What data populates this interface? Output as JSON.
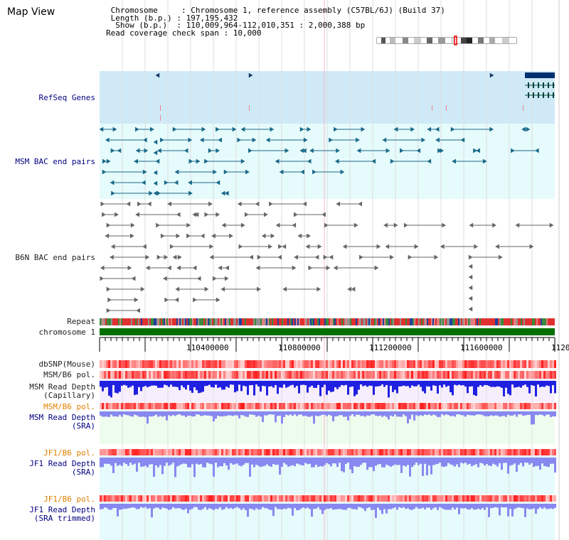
{
  "header": {
    "title": "Map View",
    "chromosome_line": " Chromosome     : Chromosome 1, reference assembly (C57BL/6J) (Build 37)",
    "length_line": " Length (b.p.) : 197,195,432",
    "show_line": "  Show (b.p.)  : 110,009,964-112,010,351 : 2,000,388 bp",
    "span_line": "Read coverage check span : 10,000"
  },
  "tracks": {
    "refseq": "RefSeq Genes",
    "msm_bac": "MSM BAC end pairs",
    "b6n_bac": "B6N BAC end pairs",
    "repeat": "Repeat",
    "chromosome": "chromosome 1",
    "dbsnp": "dbSNP(Mouse)",
    "msm_b6_pol_1": "MSM/B6 pol.",
    "msm_depth_cap_1": "MSM Read Depth",
    "msm_depth_cap_2": "(Capillary)",
    "msm_b6_pol_2": "MSM/B6 pol.",
    "msm_depth_sra_1": "MSM Read Depth",
    "msm_depth_sra_2": "(SRA)",
    "jf1_b6_pol_1": "JF1/B6 pol.",
    "jf1_depth_sra_1": "JF1 Read Depth",
    "jf1_depth_sra_2": "(SRA)",
    "jf1_b6_pol_2": "JF1/B6 pol.",
    "jf1_depth_trim_1": "JF1 Read Depth",
    "jf1_depth_trim_2": "(SRA trimmed)"
  },
  "axis": {
    "ticks": [
      "110400000",
      "110800000",
      "111200000",
      "111600000",
      "1120"
    ]
  },
  "colors": {
    "refseq_bg": "#cfeaf6",
    "msm_bg": "#e6fbfb",
    "b6n_bg": "#ffffff",
    "chromosome": "#007000",
    "msm_feature": "#1a6a8a",
    "b6n_feature": "#666666",
    "depth_blue": "#2020e0",
    "depth_light": "#8888f0",
    "label_blue": "#000080",
    "label_orange": "#e08000"
  }
}
